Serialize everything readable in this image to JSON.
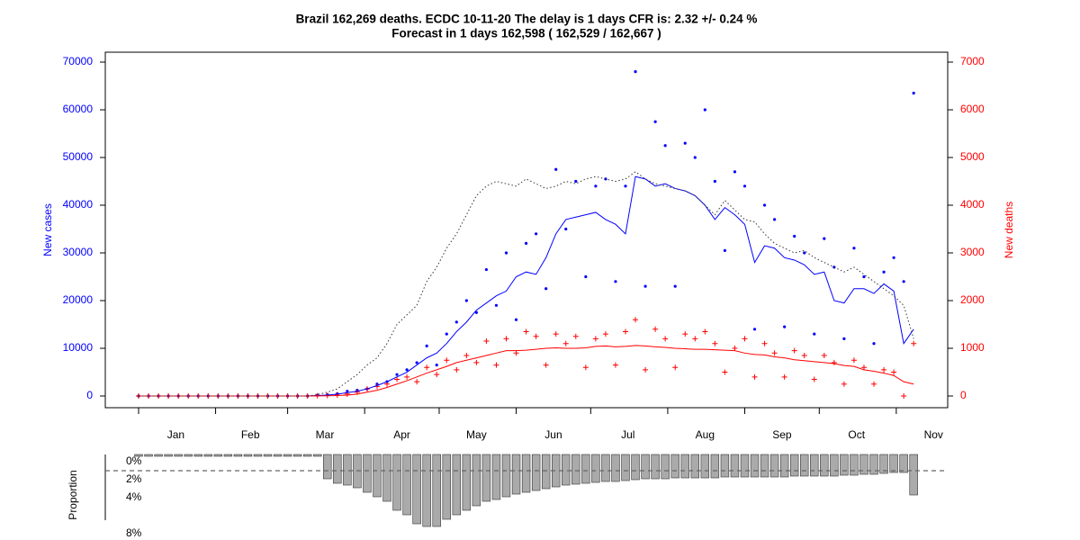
{
  "chart_data": [
    {
      "type": "line",
      "title": "Brazil 162,269 deaths. ECDC 10-11-20 The delay is 1 days CFR is: 2.32 +/- 0.24 %",
      "subtitle": "Forecast in 1 days 162,598 ( 162,529 / 162,667 )",
      "ylabel": "New cases",
      "y2label": "New deaths",
      "ylabel_color": "#0000ff",
      "y2label_color": "#ff0000",
      "x": [
        0,
        4,
        8,
        12,
        16,
        20,
        24,
        28,
        32,
        36,
        40,
        44,
        48,
        52,
        56,
        60,
        64,
        68,
        72,
        76,
        80,
        84,
        88,
        92,
        96,
        100,
        104,
        108,
        112,
        116,
        120,
        124,
        128,
        132,
        136,
        140,
        144,
        148,
        152,
        156,
        160,
        164,
        168,
        172,
        176,
        180,
        184,
        188,
        192,
        196,
        200,
        204,
        208,
        212,
        216,
        220,
        224,
        228,
        232,
        236,
        240,
        244,
        248,
        252,
        256,
        260,
        264,
        268,
        272,
        276,
        280,
        284,
        288,
        292,
        296,
        300,
        304,
        308,
        312
      ],
      "xlim": [
        -13.4,
        325.7
      ],
      "xticks": [
        0,
        31,
        60,
        91,
        121,
        152,
        182,
        213,
        244,
        274,
        305
      ],
      "xtick_labels": [
        {
          "value": 15,
          "label": "Jan"
        },
        {
          "value": 45,
          "label": "Feb"
        },
        {
          "value": 75,
          "label": "Mar"
        },
        {
          "value": 106,
          "label": "Apr"
        },
        {
          "value": 136,
          "label": "May"
        },
        {
          "value": 167,
          "label": "Jun"
        },
        {
          "value": 197,
          "label": "Jul"
        },
        {
          "value": 228,
          "label": "Aug"
        },
        {
          "value": 259,
          "label": "Sep"
        },
        {
          "value": 289,
          "label": "Oct"
        },
        {
          "value": 320,
          "label": "Nov"
        }
      ],
      "ylim": [
        -2450,
        72075
      ],
      "yticks": [
        0,
        10000,
        20000,
        30000,
        40000,
        50000,
        60000,
        70000
      ],
      "y2lim": [
        -245,
        7207.5
      ],
      "y2ticks": [
        0,
        1000,
        2000,
        3000,
        4000,
        5000,
        6000,
        7000
      ],
      "series": [
        {
          "style": "dot",
          "color": "#0000ff",
          "axis": "y",
          "values": [
            0,
            0,
            0,
            0,
            0,
            0,
            0,
            0,
            0,
            0,
            0,
            0,
            0,
            0,
            0,
            0,
            0,
            0,
            200,
            300,
            500,
            1000,
            1200,
            1500,
            2500,
            3000,
            4500,
            5500,
            7000,
            10500,
            6500,
            13000,
            15500,
            20000,
            17500,
            26500,
            19000,
            30000,
            16000,
            32000,
            34000,
            22500,
            47500,
            35000,
            45000,
            25000,
            44000,
            45500,
            24000,
            44000,
            68000,
            23000,
            57500,
            52500,
            23000,
            53000,
            50000,
            60000,
            45000,
            30500,
            47000,
            44000,
            14000,
            40000,
            37000,
            14500,
            33500,
            30000,
            13000,
            33000,
            27000,
            12000,
            31000,
            25000,
            11000,
            26000,
            29000,
            24000,
            63500
          ]
        },
        {
          "style": "cross",
          "color": "#ff0000",
          "axis": "y2",
          "values": [
            0,
            0,
            0,
            0,
            0,
            0,
            0,
            0,
            0,
            0,
            0,
            0,
            0,
            0,
            0,
            0,
            0,
            0,
            5,
            10,
            20,
            40,
            80,
            150,
            200,
            250,
            350,
            400,
            300,
            600,
            450,
            750,
            550,
            850,
            700,
            1150,
            650,
            1200,
            900,
            1350,
            1250,
            650,
            1300,
            1100,
            1250,
            600,
            1200,
            1300,
            650,
            1350,
            1600,
            550,
            1400,
            1200,
            600,
            1300,
            1200,
            1350,
            1100,
            500,
            1000,
            1200,
            400,
            1100,
            900,
            400,
            950,
            850,
            350,
            850,
            700,
            250,
            750,
            600,
            250,
            550,
            500,
            0,
            1100
          ]
        },
        {
          "style": "line",
          "color": "#0000ff",
          "axis": "y",
          "values": [
            0,
            0,
            0,
            0,
            0,
            0,
            0,
            0,
            0,
            0,
            0,
            0,
            0,
            0,
            0,
            0,
            0,
            0,
            100,
            200,
            400,
            700,
            1000,
            1500,
            2200,
            3000,
            4000,
            5000,
            6500,
            8000,
            9000,
            11000,
            13500,
            15500,
            18000,
            19500,
            21000,
            22000,
            25000,
            26000,
            25500,
            29000,
            34000,
            37000,
            37500,
            38000,
            38500,
            37000,
            36000,
            34000,
            46000,
            45500,
            44000,
            44500,
            43500,
            43000,
            42000,
            40000,
            37000,
            39500,
            38000,
            36000,
            28000,
            31500,
            31000,
            29000,
            28500,
            27500,
            25500,
            26000,
            20000,
            19500,
            22500,
            22500,
            21500,
            23500,
            22000,
            11000,
            14000
          ]
        },
        {
          "style": "line",
          "color": "#ff0000",
          "axis": "y2",
          "values": [
            0,
            0,
            0,
            0,
            0,
            0,
            0,
            0,
            0,
            0,
            0,
            0,
            0,
            0,
            0,
            0,
            0,
            0,
            2,
            5,
            10,
            20,
            40,
            80,
            120,
            180,
            250,
            320,
            400,
            480,
            550,
            620,
            700,
            750,
            800,
            850,
            900,
            950,
            950,
            960,
            980,
            1000,
            1010,
            1000,
            1000,
            1010,
            1040,
            1050,
            1030,
            1040,
            1060,
            1050,
            1030,
            1020,
            1000,
            990,
            980,
            980,
            970,
            960,
            950,
            900,
            870,
            860,
            820,
            800,
            760,
            740,
            720,
            700,
            680,
            640,
            620,
            550,
            520,
            480,
            430,
            300,
            250
          ]
        },
        {
          "style": "dotted",
          "color": "#333333",
          "axis": "y",
          "values": [
            0,
            0,
            0,
            0,
            0,
            0,
            0,
            0,
            0,
            0,
            0,
            0,
            0,
            0,
            0,
            0,
            0,
            0,
            300,
            800,
            1500,
            3000,
            4500,
            6500,
            8000,
            11000,
            15000,
            17000,
            19000,
            24000,
            27000,
            31000,
            34000,
            38000,
            42000,
            44000,
            45000,
            44500,
            44000,
            45500,
            44500,
            43500,
            44000,
            45000,
            44500,
            45500,
            46000,
            45500,
            45000,
            45500,
            47000,
            45500,
            44500,
            44000,
            43500,
            43000,
            42000,
            40000,
            38000,
            41000,
            39000,
            37000,
            36500,
            34000,
            32000,
            31000,
            30000,
            30500,
            29000,
            28000,
            27000,
            26000,
            27000,
            25500,
            24000,
            22500,
            21000,
            19000,
            12000
          ]
        }
      ]
    },
    {
      "type": "bar",
      "ylabel": "Proportion",
      "color": "#aaaaaa",
      "values": [
        0,
        0,
        0,
        0,
        0,
        0,
        0,
        0,
        0,
        0,
        0,
        0,
        0,
        0,
        0,
        0,
        0,
        0,
        0,
        2.5,
        3,
        3.2,
        3.5,
        4,
        4.5,
        5,
        6,
        6.5,
        7.5,
        7.8,
        7.8,
        7,
        6.5,
        6,
        5.5,
        5,
        4.8,
        4.5,
        4.2,
        4,
        3.8,
        3.6,
        3.4,
        3.2,
        3.1,
        3,
        2.9,
        2.8,
        2.8,
        2.7,
        2.6,
        2.5,
        2.5,
        2.5,
        2.4,
        2.4,
        2.4,
        2.4,
        2.4,
        2.3,
        2.3,
        2.3,
        2.3,
        2.3,
        2.3,
        2.3,
        2.2,
        2.2,
        2.2,
        2.2,
        2.2,
        2.1,
        2.1,
        2.0,
        2.0,
        1.9,
        1.8,
        1.8,
        4.3
      ],
      "ylim": [
        0,
        8
      ],
      "yticks": [
        {
          "value": 0,
          "label": "0%"
        },
        {
          "value": 2,
          "label": "2%"
        },
        {
          "value": 4,
          "label": "4%"
        },
        {
          "value": 8,
          "label": "8%"
        }
      ],
      "ref_line": 1.6
    }
  ]
}
